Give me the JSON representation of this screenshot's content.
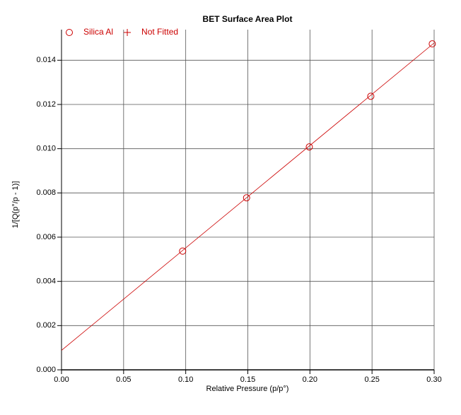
{
  "chart_data": {
    "type": "scatter",
    "title": "BET Surface Area Plot",
    "xlabel": "Relative Pressure (p/p°)",
    "ylabel": "1/[Q(p°/p - 1)]",
    "xlim": [
      0,
      0.3
    ],
    "ylim": [
      0,
      0.015
    ],
    "xticks": [
      {
        "value": 0,
        "label": "0.00"
      },
      {
        "value": 0.05,
        "label": "0.05"
      },
      {
        "value": 0.1,
        "label": "0.10"
      },
      {
        "value": 0.15,
        "label": "0.15"
      },
      {
        "value": 0.2,
        "label": "0.20"
      },
      {
        "value": 0.25,
        "label": "0.25"
      },
      {
        "value": 0.3,
        "label": "0.30"
      }
    ],
    "yticks": [
      {
        "value": 0,
        "label": "0.000"
      },
      {
        "value": 0.002,
        "label": "0.002"
      },
      {
        "value": 0.004,
        "label": "0.004"
      },
      {
        "value": 0.006,
        "label": "0.006"
      },
      {
        "value": 0.008,
        "label": "0.008"
      },
      {
        "value": 0.01,
        "label": "0.010"
      },
      {
        "value": 0.012,
        "label": "0.012"
      },
      {
        "value": 0.014,
        "label": "0.014"
      }
    ],
    "grid": true,
    "legend": "top-left",
    "series": [
      {
        "name": "Silica Al",
        "color": "#cc0000",
        "marker": "circle",
        "x": [
          0.0975,
          0.149,
          0.1995,
          0.249,
          0.2985
        ],
        "values": [
          0.00537,
          0.00778,
          0.01008,
          0.01237,
          0.01474
        ]
      },
      {
        "name": "Not Fitted",
        "color": "#cc0000",
        "marker": "plus",
        "x": [],
        "values": []
      }
    ],
    "fit_line": {
      "color": "#cc0000",
      "x": [
        0,
        0.3
      ],
      "values": [
        0.00088,
        0.01478
      ]
    }
  }
}
